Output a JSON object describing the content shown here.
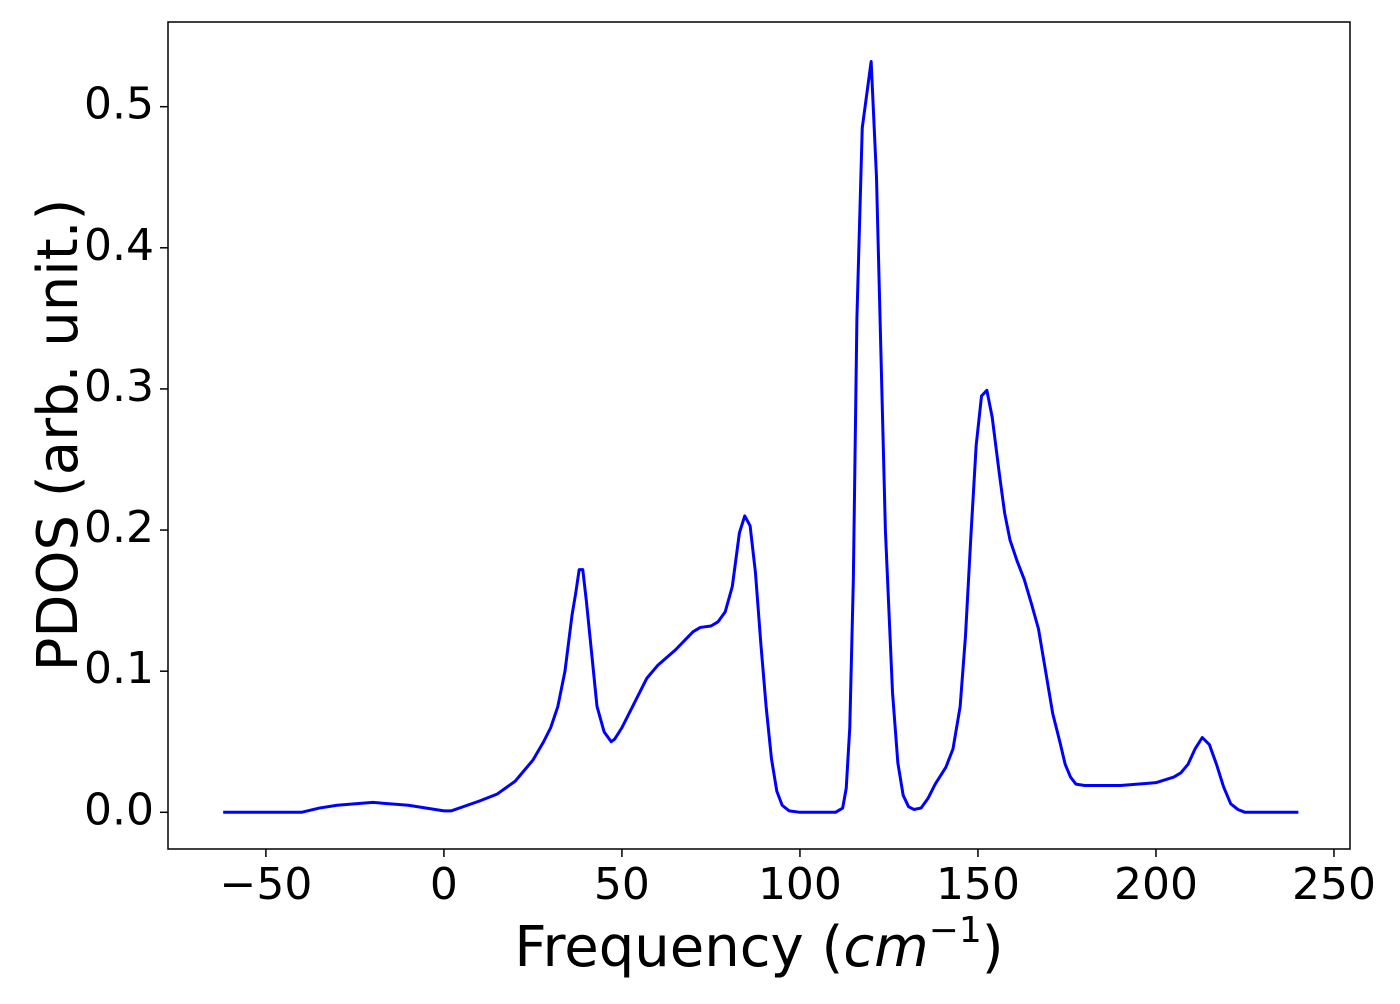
{
  "chart_data": {
    "type": "line",
    "x_label": {
      "text": "Frequency (",
      "unit": "cm",
      "exponent": "−1",
      "close": ")"
    },
    "y_label": "PDOS (arb. unit.)",
    "xlim": [
      -77.5,
      254.5
    ],
    "ylim": [
      -0.026,
      0.56
    ],
    "xticks": [
      {
        "value": -50,
        "label": "−50"
      },
      0,
      50,
      100,
      150,
      200,
      250
    ],
    "yticks": [
      {
        "value": 0,
        "label": "0.0"
      },
      0.1,
      0.2,
      0.3,
      0.4,
      0.5
    ],
    "grid": false,
    "series": [
      {
        "color": "#0000ff",
        "x": [
          -62,
          -40,
          -35,
          -30,
          -20,
          -10,
          0,
          2,
          10,
          15,
          20,
          25,
          28,
          30,
          32,
          34,
          36,
          37,
          38,
          39,
          40,
          42,
          43,
          45,
          47,
          48,
          50,
          53,
          57,
          60,
          65,
          70,
          72,
          75,
          77,
          79,
          81,
          83,
          84.5,
          86,
          87.5,
          89,
          90.5,
          92,
          93.5,
          95,
          97,
          100,
          110,
          112,
          113,
          114,
          115,
          116,
          117.5,
          120,
          121.5,
          123,
          124,
          126,
          127.5,
          129,
          130.5,
          132,
          134,
          136,
          138,
          141,
          143,
          145,
          146.5,
          148,
          149.5,
          151,
          152.5,
          154,
          156,
          157.5,
          159,
          161,
          163,
          165,
          167,
          169,
          171,
          173,
          174.5,
          176,
          177.5,
          180,
          190,
          200,
          205,
          207,
          209,
          211,
          213,
          215,
          217,
          219,
          221,
          223,
          225,
          240
        ],
        "values": [
          0,
          0,
          0.003,
          0.005,
          0.007,
          0.005,
          0.001,
          0.001,
          0.008,
          0.013,
          0.022,
          0.037,
          0.05,
          0.06,
          0.075,
          0.1,
          0.14,
          0.155,
          0.172,
          0.172,
          0.15,
          0.1,
          0.075,
          0.057,
          0.05,
          0.052,
          0.06,
          0.075,
          0.095,
          0.104,
          0.115,
          0.128,
          0.131,
          0.132,
          0.135,
          0.142,
          0.16,
          0.198,
          0.21,
          0.203,
          0.17,
          0.12,
          0.075,
          0.038,
          0.015,
          0.005,
          0.001,
          0,
          0,
          0.003,
          0.017,
          0.06,
          0.165,
          0.35,
          0.485,
          0.532,
          0.45,
          0.3,
          0.2,
          0.085,
          0.035,
          0.012,
          0.004,
          0.002,
          0.003,
          0.01,
          0.02,
          0.032,
          0.045,
          0.075,
          0.125,
          0.195,
          0.26,
          0.295,
          0.299,
          0.28,
          0.24,
          0.212,
          0.193,
          0.178,
          0.165,
          0.148,
          0.13,
          0.1,
          0.07,
          0.05,
          0.034,
          0.025,
          0.02,
          0.019,
          0.019,
          0.021,
          0.025,
          0.028,
          0.034,
          0.045,
          0.053,
          0.048,
          0.034,
          0.018,
          0.006,
          0.002,
          0,
          0
        ]
      }
    ]
  }
}
